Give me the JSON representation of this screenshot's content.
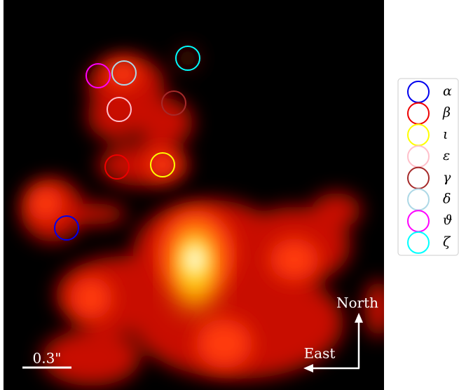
{
  "image": {
    "scale_bar_label": "0.3\"",
    "compass": {
      "north": "North",
      "east": "East"
    }
  },
  "legend": {
    "entries": [
      {
        "label": "α",
        "color": "#0000ee"
      },
      {
        "label": "β",
        "color": "#ee0000"
      },
      {
        "label": "ι",
        "color": "#ffff00"
      },
      {
        "label": "ε",
        "color": "#ffc0cb"
      },
      {
        "label": "γ",
        "color": "#a52a2a"
      },
      {
        "label": "δ",
        "color": "#add8e6"
      },
      {
        "label": "ϑ",
        "color": "#ff00ff"
      },
      {
        "label": "ζ",
        "color": "#00ffff"
      }
    ]
  }
}
